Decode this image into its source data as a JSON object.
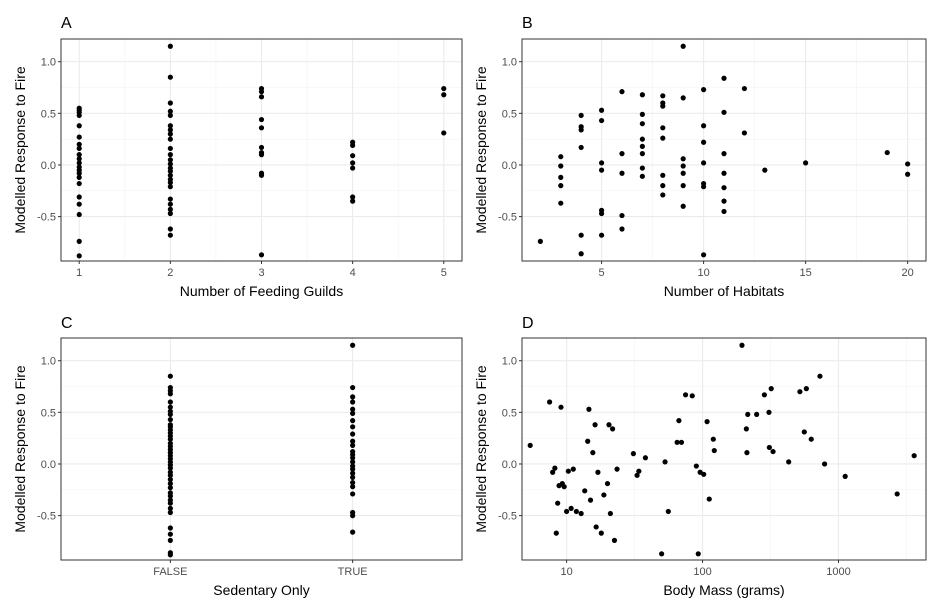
{
  "chart_data": [
    {
      "id": "A",
      "type": "scatter",
      "panel_label": "A",
      "xlabel": "Number of Feeding Guilds",
      "ylabel": "Modelled Response to Fire",
      "x_scale": "linear",
      "xlim": [
        0.8,
        5.2
      ],
      "ylim": [
        -0.93,
        1.22
      ],
      "x_ticks": [
        1,
        2,
        3,
        4,
        5
      ],
      "x_tick_labels": [
        "1",
        "2",
        "3",
        "4",
        "5"
      ],
      "y_ticks": [
        -0.5,
        0,
        0.5,
        1
      ],
      "y_tick_labels": [
        "-0.5",
        "0.0",
        "0.5",
        "1.0"
      ],
      "grid": true,
      "points": [
        [
          1,
          0.55
        ],
        [
          1,
          0.53
        ],
        [
          1,
          0.51
        ],
        [
          1,
          0.48
        ],
        [
          1,
          0.38
        ],
        [
          1,
          0.27
        ],
        [
          1,
          0.2
        ],
        [
          1,
          0.16
        ],
        [
          1,
          0.1
        ],
        [
          1,
          0.06
        ],
        [
          1,
          0.02
        ],
        [
          1,
          -0.02
        ],
        [
          1,
          -0.05
        ],
        [
          1,
          -0.08
        ],
        [
          1,
          -0.12
        ],
        [
          1,
          -0.18
        ],
        [
          1,
          -0.31
        ],
        [
          1,
          -0.38
        ],
        [
          1,
          -0.48
        ],
        [
          1,
          -0.74
        ],
        [
          1,
          -0.88
        ],
        [
          2,
          1.15
        ],
        [
          2,
          0.85
        ],
        [
          2,
          0.6
        ],
        [
          2,
          0.52
        ],
        [
          2,
          0.48
        ],
        [
          2,
          0.38
        ],
        [
          2,
          0.34
        ],
        [
          2,
          0.3
        ],
        [
          2,
          0.25
        ],
        [
          2,
          0.16
        ],
        [
          2,
          0.1
        ],
        [
          2,
          0.05
        ],
        [
          2,
          0.01
        ],
        [
          2,
          -0.03
        ],
        [
          2,
          -0.06
        ],
        [
          2,
          -0.1
        ],
        [
          2,
          -0.14
        ],
        [
          2,
          -0.17
        ],
        [
          2,
          -0.21
        ],
        [
          2,
          -0.33
        ],
        [
          2,
          -0.38
        ],
        [
          2,
          -0.43
        ],
        [
          2,
          -0.47
        ],
        [
          2,
          -0.62
        ],
        [
          2,
          -0.68
        ],
        [
          3,
          0.74
        ],
        [
          3,
          0.71
        ],
        [
          3,
          0.66
        ],
        [
          3,
          0.44
        ],
        [
          3,
          0.36
        ],
        [
          3,
          0.17
        ],
        [
          3,
          0.12
        ],
        [
          3,
          0.1
        ],
        [
          3,
          -0.08
        ],
        [
          3,
          -0.1
        ],
        [
          3,
          -0.87
        ],
        [
          4,
          0.22
        ],
        [
          4,
          0.19
        ],
        [
          4,
          0.09
        ],
        [
          4,
          0.02
        ],
        [
          4,
          -0.03
        ],
        [
          4,
          -0.31
        ],
        [
          4,
          -0.35
        ],
        [
          5,
          0.74
        ],
        [
          5,
          0.68
        ],
        [
          5,
          0.31
        ]
      ]
    },
    {
      "id": "B",
      "type": "scatter",
      "panel_label": "B",
      "xlabel": "Number of Habitats",
      "ylabel": "Modelled Response to Fire",
      "x_scale": "linear",
      "xlim": [
        1.1,
        20.9
      ],
      "ylim": [
        -0.93,
        1.22
      ],
      "x_ticks": [
        5,
        10,
        15,
        20
      ],
      "x_tick_labels": [
        "5",
        "10",
        "15",
        "20"
      ],
      "y_ticks": [
        -0.5,
        0,
        0.5,
        1
      ],
      "y_tick_labels": [
        "-0.5",
        "0.0",
        "0.5",
        "1.0"
      ],
      "grid": true,
      "points": [
        [
          2,
          -0.74
        ],
        [
          3,
          0.08
        ],
        [
          3,
          -0.01
        ],
        [
          3,
          -0.12
        ],
        [
          3,
          -0.2
        ],
        [
          3,
          -0.37
        ],
        [
          4,
          0.48
        ],
        [
          4,
          0.37
        ],
        [
          4,
          0.34
        ],
        [
          4,
          0.17
        ],
        [
          4,
          -0.68
        ],
        [
          4,
          -0.86
        ],
        [
          5,
          0.53
        ],
        [
          5,
          0.43
        ],
        [
          5,
          0.02
        ],
        [
          5,
          -0.05
        ],
        [
          5,
          -0.44
        ],
        [
          5,
          -0.47
        ],
        [
          5,
          -0.68
        ],
        [
          6,
          0.71
        ],
        [
          6,
          0.11
        ],
        [
          6,
          -0.08
        ],
        [
          6,
          -0.49
        ],
        [
          6,
          -0.62
        ],
        [
          7,
          0.68
        ],
        [
          7,
          0.49
        ],
        [
          7,
          0.4
        ],
        [
          7,
          0.25
        ],
        [
          7,
          0.18
        ],
        [
          7,
          0.11
        ],
        [
          7,
          -0.03
        ],
        [
          7,
          -0.11
        ],
        [
          8,
          0.67
        ],
        [
          8,
          0.6
        ],
        [
          8,
          0.57
        ],
        [
          8,
          0.36
        ],
        [
          8,
          0.26
        ],
        [
          8,
          -0.1
        ],
        [
          8,
          -0.2
        ],
        [
          8,
          -0.29
        ],
        [
          9,
          1.15
        ],
        [
          9,
          0.65
        ],
        [
          9,
          0.06
        ],
        [
          9,
          -0.01
        ],
        [
          9,
          -0.08
        ],
        [
          9,
          -0.2
        ],
        [
          9,
          -0.4
        ],
        [
          10,
          0.73
        ],
        [
          10,
          0.38
        ],
        [
          10,
          0.22
        ],
        [
          10,
          0.02
        ],
        [
          10,
          -0.18
        ],
        [
          10,
          -0.21
        ],
        [
          10,
          -0.87
        ],
        [
          11,
          0.84
        ],
        [
          11,
          0.51
        ],
        [
          11,
          0.11
        ],
        [
          11,
          -0.08
        ],
        [
          11,
          -0.22
        ],
        [
          11,
          -0.35
        ],
        [
          11,
          -0.45
        ],
        [
          12,
          0.74
        ],
        [
          12,
          0.31
        ],
        [
          13,
          -0.05
        ],
        [
          15,
          0.02
        ],
        [
          19,
          0.12
        ],
        [
          20,
          0.01
        ],
        [
          20,
          -0.09
        ]
      ]
    },
    {
      "id": "C",
      "type": "scatter",
      "panel_label": "C",
      "xlabel": "Sedentary Only",
      "ylabel": "Modelled Response to Fire",
      "x_scale": "categorical",
      "categories": [
        "FALSE",
        "TRUE"
      ],
      "xlim": [
        0.4,
        2.6
      ],
      "ylim": [
        -0.93,
        1.22
      ],
      "x_ticks": [
        1,
        2
      ],
      "x_tick_labels": [
        "FALSE",
        "TRUE"
      ],
      "y_ticks": [
        -0.5,
        0,
        0.5,
        1
      ],
      "y_tick_labels": [
        "-0.5",
        "0.0",
        "0.5",
        "1.0"
      ],
      "grid": true,
      "points": [
        [
          1,
          0.85
        ],
        [
          1,
          0.74
        ],
        [
          1,
          0.71
        ],
        [
          1,
          0.68
        ],
        [
          1,
          0.6
        ],
        [
          1,
          0.55
        ],
        [
          1,
          0.51
        ],
        [
          1,
          0.48
        ],
        [
          1,
          0.43
        ],
        [
          1,
          0.38
        ],
        [
          1,
          0.36
        ],
        [
          1,
          0.33
        ],
        [
          1,
          0.3
        ],
        [
          1,
          0.27
        ],
        [
          1,
          0.24
        ],
        [
          1,
          0.2
        ],
        [
          1,
          0.17
        ],
        [
          1,
          0.14
        ],
        [
          1,
          0.11
        ],
        [
          1,
          0.08
        ],
        [
          1,
          0.05
        ],
        [
          1,
          0.02
        ],
        [
          1,
          -0.01
        ],
        [
          1,
          -0.04
        ],
        [
          1,
          -0.08
        ],
        [
          1,
          -0.11
        ],
        [
          1,
          -0.15
        ],
        [
          1,
          -0.19
        ],
        [
          1,
          -0.23
        ],
        [
          1,
          -0.28
        ],
        [
          1,
          -0.31
        ],
        [
          1,
          -0.35
        ],
        [
          1,
          -0.38
        ],
        [
          1,
          -0.43
        ],
        [
          1,
          -0.47
        ],
        [
          1,
          -0.62
        ],
        [
          1,
          -0.68
        ],
        [
          1,
          -0.74
        ],
        [
          1,
          -0.86
        ],
        [
          1,
          -0.88
        ],
        [
          2,
          1.15
        ],
        [
          2,
          0.74
        ],
        [
          2,
          0.65
        ],
        [
          2,
          0.6
        ],
        [
          2,
          0.53
        ],
        [
          2,
          0.49
        ],
        [
          2,
          0.42
        ],
        [
          2,
          0.36
        ],
        [
          2,
          0.29
        ],
        [
          2,
          0.22
        ],
        [
          2,
          0.18
        ],
        [
          2,
          0.12
        ],
        [
          2,
          0.09
        ],
        [
          2,
          0.06
        ],
        [
          2,
          0.02
        ],
        [
          2,
          -0.02
        ],
        [
          2,
          -0.05
        ],
        [
          2,
          -0.09
        ],
        [
          2,
          -0.13
        ],
        [
          2,
          -0.18
        ],
        [
          2,
          -0.22
        ],
        [
          2,
          -0.29
        ],
        [
          2,
          -0.47
        ],
        [
          2,
          -0.5
        ],
        [
          2,
          -0.66
        ]
      ]
    },
    {
      "id": "D",
      "type": "scatter",
      "panel_label": "D",
      "xlabel": "Body Mass (grams)",
      "ylabel": "Modelled Response to Fire",
      "x_scale": "log10",
      "xlim": [
        4.7,
        4400
      ],
      "ylim": [
        -0.93,
        1.22
      ],
      "x_ticks": [
        10,
        100,
        1000
      ],
      "x_tick_labels": [
        "10",
        "100",
        "1000"
      ],
      "y_ticks": [
        -0.5,
        0,
        0.5,
        1
      ],
      "y_tick_labels": [
        "-0.5",
        "0.0",
        "0.5",
        "1.0"
      ],
      "grid": true,
      "points": [
        [
          5.4,
          0.18
        ],
        [
          7.5,
          0.6
        ],
        [
          7.9,
          -0.08
        ],
        [
          8.2,
          -0.04
        ],
        [
          8.4,
          -0.67
        ],
        [
          8.6,
          -0.38
        ],
        [
          8.8,
          -0.21
        ],
        [
          9.1,
          0.55
        ],
        [
          9.3,
          -0.19
        ],
        [
          9.6,
          -0.22
        ],
        [
          10.0,
          -0.46
        ],
        [
          10.3,
          -0.07
        ],
        [
          10.8,
          -0.43
        ],
        [
          11.2,
          -0.05
        ],
        [
          11.8,
          -0.46
        ],
        [
          12.8,
          -0.48
        ],
        [
          13.6,
          -0.26
        ],
        [
          14.3,
          0.22
        ],
        [
          14.6,
          0.53
        ],
        [
          15.0,
          -0.35
        ],
        [
          15.6,
          0.11
        ],
        [
          16.2,
          0.38
        ],
        [
          16.5,
          -0.61
        ],
        [
          17.0,
          -0.08
        ],
        [
          18.0,
          -0.67
        ],
        [
          18.8,
          -0.3
        ],
        [
          20.0,
          -0.19
        ],
        [
          20.5,
          0.38
        ],
        [
          21.0,
          -0.48
        ],
        [
          21.8,
          0.34
        ],
        [
          22.5,
          -0.74
        ],
        [
          23.5,
          -0.05
        ],
        [
          31.0,
          0.1
        ],
        [
          33.0,
          -0.11
        ],
        [
          34.0,
          -0.07
        ],
        [
          38.0,
          0.06
        ],
        [
          50.0,
          -0.87
        ],
        [
          53.0,
          0.02
        ],
        [
          56.0,
          -0.46
        ],
        [
          65.0,
          0.21
        ],
        [
          67.0,
          0.42
        ],
        [
          70.0,
          0.21
        ],
        [
          75.0,
          0.67
        ],
        [
          84.0,
          0.66
        ],
        [
          90.0,
          -0.02
        ],
        [
          93.0,
          -0.87
        ],
        [
          96.0,
          -0.08
        ],
        [
          102.0,
          -0.1
        ],
        [
          108.0,
          0.41
        ],
        [
          112.0,
          -0.34
        ],
        [
          120.0,
          0.24
        ],
        [
          122.0,
          0.13
        ],
        [
          195.0,
          1.15
        ],
        [
          210.0,
          0.34
        ],
        [
          212.0,
          0.11
        ],
        [
          215.0,
          0.48
        ],
        [
          250.0,
          0.48
        ],
        [
          285.0,
          0.67
        ],
        [
          308.0,
          0.5
        ],
        [
          310.0,
          0.16
        ],
        [
          320.0,
          0.73
        ],
        [
          330.0,
          0.12
        ],
        [
          430.0,
          0.02
        ],
        [
          520.0,
          0.7
        ],
        [
          560.0,
          0.31
        ],
        [
          580.0,
          0.73
        ],
        [
          630.0,
          0.24
        ],
        [
          730.0,
          0.85
        ],
        [
          790.0,
          0.0
        ],
        [
          1120.0,
          -0.12
        ],
        [
          2700.0,
          -0.29
        ],
        [
          3600.0,
          0.08
        ]
      ]
    }
  ]
}
